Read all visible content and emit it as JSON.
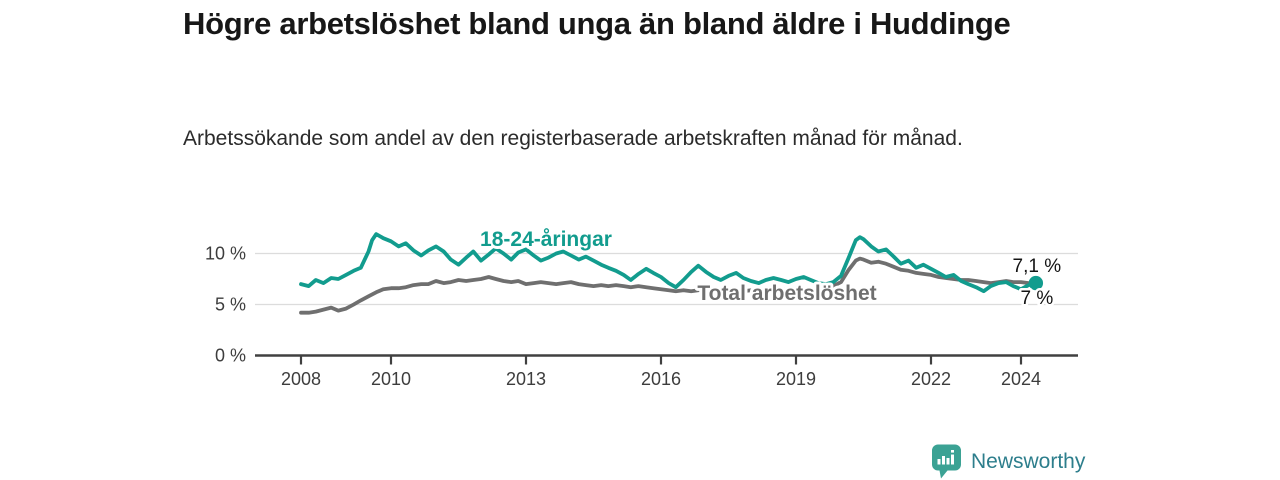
{
  "chart_data": {
    "type": "line",
    "title": "Högre arbetslöshet bland unga än bland äldre i Huddinge",
    "subtitle": "Arbetssökande som andel av den registerbaserade arbetskraften månad för månad.",
    "xlabel": "",
    "ylabel": "",
    "x_ticks": [
      2008,
      2010,
      2013,
      2016,
      2019,
      2022,
      2024
    ],
    "y_ticks": [
      {
        "value": 0,
        "label": "0 %"
      },
      {
        "value": 5,
        "label": "5 %"
      },
      {
        "value": 10,
        "label": "10 %"
      }
    ],
    "xlim": [
      2007,
      2025.3
    ],
    "ylim": [
      0,
      12.5
    ],
    "grid": "horizontal",
    "legend": "inline-labels",
    "series": [
      {
        "id": "total",
        "name": "Total arbetslöshet",
        "color": "#6f6f6f",
        "end_label": "7 %",
        "end_value": 7.0,
        "marker": false,
        "points": [
          [
            2008.0,
            4.2
          ],
          [
            2008.17,
            4.2
          ],
          [
            2008.33,
            4.3
          ],
          [
            2008.5,
            4.5
          ],
          [
            2008.67,
            4.7
          ],
          [
            2008.83,
            4.4
          ],
          [
            2009.0,
            4.6
          ],
          [
            2009.17,
            5.0
          ],
          [
            2009.33,
            5.4
          ],
          [
            2009.5,
            5.8
          ],
          [
            2009.67,
            6.2
          ],
          [
            2009.83,
            6.5
          ],
          [
            2010.0,
            6.6
          ],
          [
            2010.17,
            6.6
          ],
          [
            2010.33,
            6.7
          ],
          [
            2010.5,
            6.9
          ],
          [
            2010.67,
            7.0
          ],
          [
            2010.83,
            7.0
          ],
          [
            2011.0,
            7.3
          ],
          [
            2011.17,
            7.1
          ],
          [
            2011.33,
            7.2
          ],
          [
            2011.5,
            7.4
          ],
          [
            2011.67,
            7.3
          ],
          [
            2011.83,
            7.4
          ],
          [
            2012.0,
            7.5
          ],
          [
            2012.17,
            7.7
          ],
          [
            2012.33,
            7.5
          ],
          [
            2012.5,
            7.3
          ],
          [
            2012.67,
            7.2
          ],
          [
            2012.83,
            7.3
          ],
          [
            2013.0,
            7.0
          ],
          [
            2013.17,
            7.1
          ],
          [
            2013.33,
            7.2
          ],
          [
            2013.5,
            7.1
          ],
          [
            2013.67,
            7.0
          ],
          [
            2013.83,
            7.1
          ],
          [
            2014.0,
            7.2
          ],
          [
            2014.17,
            7.0
          ],
          [
            2014.33,
            6.9
          ],
          [
            2014.5,
            6.8
          ],
          [
            2014.67,
            6.9
          ],
          [
            2014.83,
            6.8
          ],
          [
            2015.0,
            6.9
          ],
          [
            2015.17,
            6.8
          ],
          [
            2015.33,
            6.7
          ],
          [
            2015.5,
            6.8
          ],
          [
            2015.67,
            6.7
          ],
          [
            2015.83,
            6.6
          ],
          [
            2016.0,
            6.5
          ],
          [
            2016.17,
            6.4
          ],
          [
            2016.33,
            6.3
          ],
          [
            2016.5,
            6.4
          ],
          [
            2016.67,
            6.3
          ],
          [
            2016.83,
            6.4
          ],
          [
            2017.0,
            6.5
          ],
          [
            2017.17,
            6.4
          ],
          [
            2017.33,
            6.3
          ],
          [
            2017.5,
            6.4
          ],
          [
            2017.67,
            6.4
          ],
          [
            2017.83,
            6.3
          ],
          [
            2018.0,
            6.4
          ],
          [
            2018.17,
            6.5
          ],
          [
            2018.33,
            6.4
          ],
          [
            2018.5,
            6.5
          ],
          [
            2018.67,
            6.4
          ],
          [
            2018.83,
            6.5
          ],
          [
            2019.0,
            6.6
          ],
          [
            2019.17,
            6.5
          ],
          [
            2019.33,
            6.6
          ],
          [
            2019.5,
            6.5
          ],
          [
            2019.67,
            6.6
          ],
          [
            2019.83,
            6.8
          ],
          [
            2020.0,
            7.2
          ],
          [
            2020.17,
            8.4
          ],
          [
            2020.33,
            9.3
          ],
          [
            2020.42,
            9.5
          ],
          [
            2020.5,
            9.4
          ],
          [
            2020.67,
            9.1
          ],
          [
            2020.83,
            9.2
          ],
          [
            2021.0,
            9.0
          ],
          [
            2021.17,
            8.7
          ],
          [
            2021.33,
            8.4
          ],
          [
            2021.5,
            8.3
          ],
          [
            2021.67,
            8.1
          ],
          [
            2021.83,
            8.0
          ],
          [
            2022.0,
            7.9
          ],
          [
            2022.17,
            7.7
          ],
          [
            2022.33,
            7.6
          ],
          [
            2022.5,
            7.5
          ],
          [
            2022.67,
            7.4
          ],
          [
            2022.83,
            7.4
          ],
          [
            2023.0,
            7.3
          ],
          [
            2023.17,
            7.2
          ],
          [
            2023.33,
            7.1
          ],
          [
            2023.5,
            7.2
          ],
          [
            2023.67,
            7.3
          ],
          [
            2023.83,
            7.2
          ],
          [
            2024.0,
            7.2
          ],
          [
            2024.17,
            7.1
          ],
          [
            2024.33,
            7.0
          ]
        ]
      },
      {
        "id": "youth",
        "name": "18-24-åringar",
        "color": "#129c8e",
        "end_label": "7,1 %",
        "end_value": 7.1,
        "marker": true,
        "points": [
          [
            2008.0,
            7.0
          ],
          [
            2008.17,
            6.8
          ],
          [
            2008.33,
            7.4
          ],
          [
            2008.5,
            7.1
          ],
          [
            2008.67,
            7.6
          ],
          [
            2008.83,
            7.5
          ],
          [
            2009.0,
            7.9
          ],
          [
            2009.17,
            8.3
          ],
          [
            2009.33,
            8.6
          ],
          [
            2009.5,
            10.2
          ],
          [
            2009.58,
            11.3
          ],
          [
            2009.67,
            11.9
          ],
          [
            2009.83,
            11.5
          ],
          [
            2010.0,
            11.2
          ],
          [
            2010.17,
            10.7
          ],
          [
            2010.33,
            11.0
          ],
          [
            2010.5,
            10.3
          ],
          [
            2010.67,
            9.8
          ],
          [
            2010.83,
            10.3
          ],
          [
            2011.0,
            10.7
          ],
          [
            2011.17,
            10.2
          ],
          [
            2011.33,
            9.4
          ],
          [
            2011.5,
            8.9
          ],
          [
            2011.67,
            9.6
          ],
          [
            2011.83,
            10.2
          ],
          [
            2012.0,
            9.3
          ],
          [
            2012.17,
            9.9
          ],
          [
            2012.33,
            10.5
          ],
          [
            2012.5,
            10.0
          ],
          [
            2012.67,
            9.4
          ],
          [
            2012.83,
            10.1
          ],
          [
            2013.0,
            10.4
          ],
          [
            2013.17,
            9.8
          ],
          [
            2013.33,
            9.3
          ],
          [
            2013.5,
            9.6
          ],
          [
            2013.67,
            10.0
          ],
          [
            2013.83,
            10.2
          ],
          [
            2014.0,
            9.8
          ],
          [
            2014.17,
            9.4
          ],
          [
            2014.33,
            9.7
          ],
          [
            2014.5,
            9.3
          ],
          [
            2014.67,
            8.9
          ],
          [
            2014.83,
            8.6
          ],
          [
            2015.0,
            8.3
          ],
          [
            2015.17,
            7.9
          ],
          [
            2015.33,
            7.4
          ],
          [
            2015.5,
            8.0
          ],
          [
            2015.67,
            8.5
          ],
          [
            2015.83,
            8.1
          ],
          [
            2016.0,
            7.7
          ],
          [
            2016.17,
            7.1
          ],
          [
            2016.33,
            6.7
          ],
          [
            2016.5,
            7.4
          ],
          [
            2016.67,
            8.2
          ],
          [
            2016.83,
            8.8
          ],
          [
            2017.0,
            8.2
          ],
          [
            2017.17,
            7.7
          ],
          [
            2017.33,
            7.4
          ],
          [
            2017.5,
            7.8
          ],
          [
            2017.67,
            8.1
          ],
          [
            2017.83,
            7.6
          ],
          [
            2018.0,
            7.3
          ],
          [
            2018.17,
            7.1
          ],
          [
            2018.33,
            7.4
          ],
          [
            2018.5,
            7.6
          ],
          [
            2018.67,
            7.4
          ],
          [
            2018.83,
            7.2
          ],
          [
            2019.0,
            7.5
          ],
          [
            2019.17,
            7.7
          ],
          [
            2019.33,
            7.4
          ],
          [
            2019.5,
            7.1
          ],
          [
            2019.67,
            7.0
          ],
          [
            2019.83,
            7.2
          ],
          [
            2020.0,
            7.8
          ],
          [
            2020.17,
            9.6
          ],
          [
            2020.33,
            11.3
          ],
          [
            2020.42,
            11.6
          ],
          [
            2020.5,
            11.4
          ],
          [
            2020.67,
            10.7
          ],
          [
            2020.83,
            10.2
          ],
          [
            2021.0,
            10.4
          ],
          [
            2021.17,
            9.7
          ],
          [
            2021.33,
            9.0
          ],
          [
            2021.5,
            9.3
          ],
          [
            2021.67,
            8.6
          ],
          [
            2021.83,
            8.9
          ],
          [
            2022.0,
            8.5
          ],
          [
            2022.17,
            8.1
          ],
          [
            2022.33,
            7.7
          ],
          [
            2022.5,
            7.9
          ],
          [
            2022.67,
            7.3
          ],
          [
            2022.83,
            7.0
          ],
          [
            2023.0,
            6.7
          ],
          [
            2023.17,
            6.3
          ],
          [
            2023.33,
            6.8
          ],
          [
            2023.5,
            7.1
          ],
          [
            2023.67,
            7.2
          ],
          [
            2023.83,
            6.8
          ],
          [
            2024.0,
            6.5
          ],
          [
            2024.17,
            6.9
          ],
          [
            2024.33,
            7.1
          ]
        ]
      }
    ]
  },
  "footer": {
    "brand": "Newsworthy",
    "logo_icon": "newsworthy-bar-chart-bubble-icon"
  },
  "colors": {
    "accent_teal": "#129c8e",
    "line_gray": "#6f6f6f",
    "brand_teal": "#2d7e8c",
    "logo_fill": "#3ba294",
    "gridline": "#dcdcdc",
    "axis": "#404040"
  }
}
